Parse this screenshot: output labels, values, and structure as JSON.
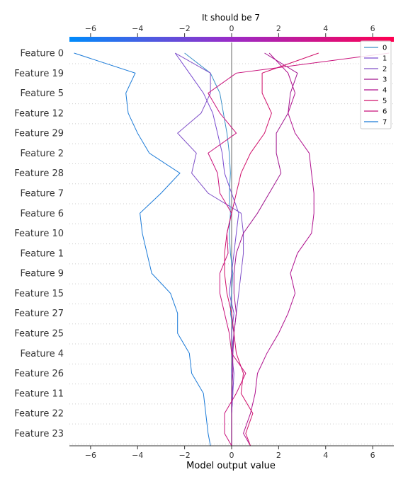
{
  "chart_data": {
    "type": "line",
    "title": "It should be 7",
    "xlabel": "Model output value",
    "xlim": [
      -6.9,
      6.9
    ],
    "xticks": [
      -6,
      -4,
      -2,
      0,
      2,
      4,
      6
    ],
    "base_value": 0,
    "features": [
      "Feature 0",
      "Feature 19",
      "Feature 5",
      "Feature 12",
      "Feature 29",
      "Feature 2",
      "Feature 28",
      "Feature 7",
      "Feature 6",
      "Feature 10",
      "Feature 1",
      "Feature 9",
      "Feature 15",
      "Feature 27",
      "Feature 25",
      "Feature 4",
      "Feature 26",
      "Feature 11",
      "Feature 22",
      "Feature 23"
    ],
    "legend_position": "top-right",
    "series": [
      {
        "name": "0",
        "color": "#3a8fc8",
        "values": [
          -2.0,
          -0.9,
          -0.5,
          -0.35,
          -0.2,
          -0.1,
          -0.05,
          -0.1,
          -0.05,
          -0.1,
          -0.05,
          0.05,
          0.0,
          -0.05,
          0.1,
          0.05,
          0.0,
          0.05,
          0.0,
          0.0,
          0.0
        ]
      },
      {
        "name": "1",
        "color": "#7a4bd0",
        "values": [
          -2.4,
          -1.8,
          -1.2,
          -0.8,
          -0.6,
          -0.4,
          -0.3,
          0.0,
          0.3,
          0.2,
          0.1,
          0.0,
          -0.1,
          0.1,
          0.0,
          0.05,
          0.0,
          0.05,
          0.0,
          0.0,
          0.0
        ]
      },
      {
        "name": "2",
        "color": "#8050c8",
        "values": [
          -2.4,
          -0.9,
          -0.9,
          -1.3,
          -2.3,
          -1.5,
          -1.7,
          -1.0,
          0.4,
          0.5,
          0.5,
          0.4,
          0.3,
          0.2,
          0.1,
          0.0,
          0.1,
          0.05,
          0.0,
          0.0,
          0.0
        ]
      },
      {
        "name": "3",
        "color": "#a0148e",
        "values": [
          1.4,
          2.8,
          2.5,
          2.4,
          1.9,
          1.9,
          2.1,
          1.6,
          1.1,
          0.5,
          0.2,
          0.1,
          0.1,
          0.2,
          0.1,
          0.05,
          0.05,
          0.0,
          0.0,
          0.0,
          0.0
        ]
      },
      {
        "name": "4",
        "color": "#b0108e",
        "values": [
          1.6,
          2.4,
          2.7,
          2.4,
          2.7,
          3.3,
          3.4,
          3.5,
          3.5,
          3.4,
          2.8,
          2.5,
          2.7,
          2.4,
          2.0,
          1.5,
          1.1,
          1.0,
          0.8,
          0.5,
          0.8
        ]
      },
      {
        "name": "5",
        "color": "#d0106a",
        "values": [
          3.7,
          1.3,
          1.3,
          1.7,
          1.4,
          0.8,
          0.4,
          0.2,
          0.0,
          -0.2,
          -0.3,
          -0.3,
          -0.2,
          0.0,
          0.1,
          0.2,
          0.5,
          0.4,
          0.9,
          0.6,
          0.8
        ]
      },
      {
        "name": "6",
        "color": "#c8107a",
        "values": [
          6.7,
          0.2,
          -1.0,
          -0.5,
          0.2,
          -1.0,
          -0.6,
          -0.5,
          0.0,
          -0.2,
          -0.15,
          -0.5,
          -0.5,
          -0.3,
          -0.1,
          0.0,
          0.6,
          0.2,
          -0.3,
          -0.3,
          0.0
        ]
      },
      {
        "name": "7",
        "color": "#1a7ad8",
        "values": [
          -6.7,
          -4.1,
          -4.5,
          -4.4,
          -4.0,
          -3.5,
          -2.2,
          -3.0,
          -3.9,
          -3.8,
          -3.6,
          -3.4,
          -2.6,
          -2.3,
          -2.3,
          -1.8,
          -1.7,
          -1.2,
          -1.1,
          -1.0,
          -0.9
        ]
      }
    ]
  }
}
